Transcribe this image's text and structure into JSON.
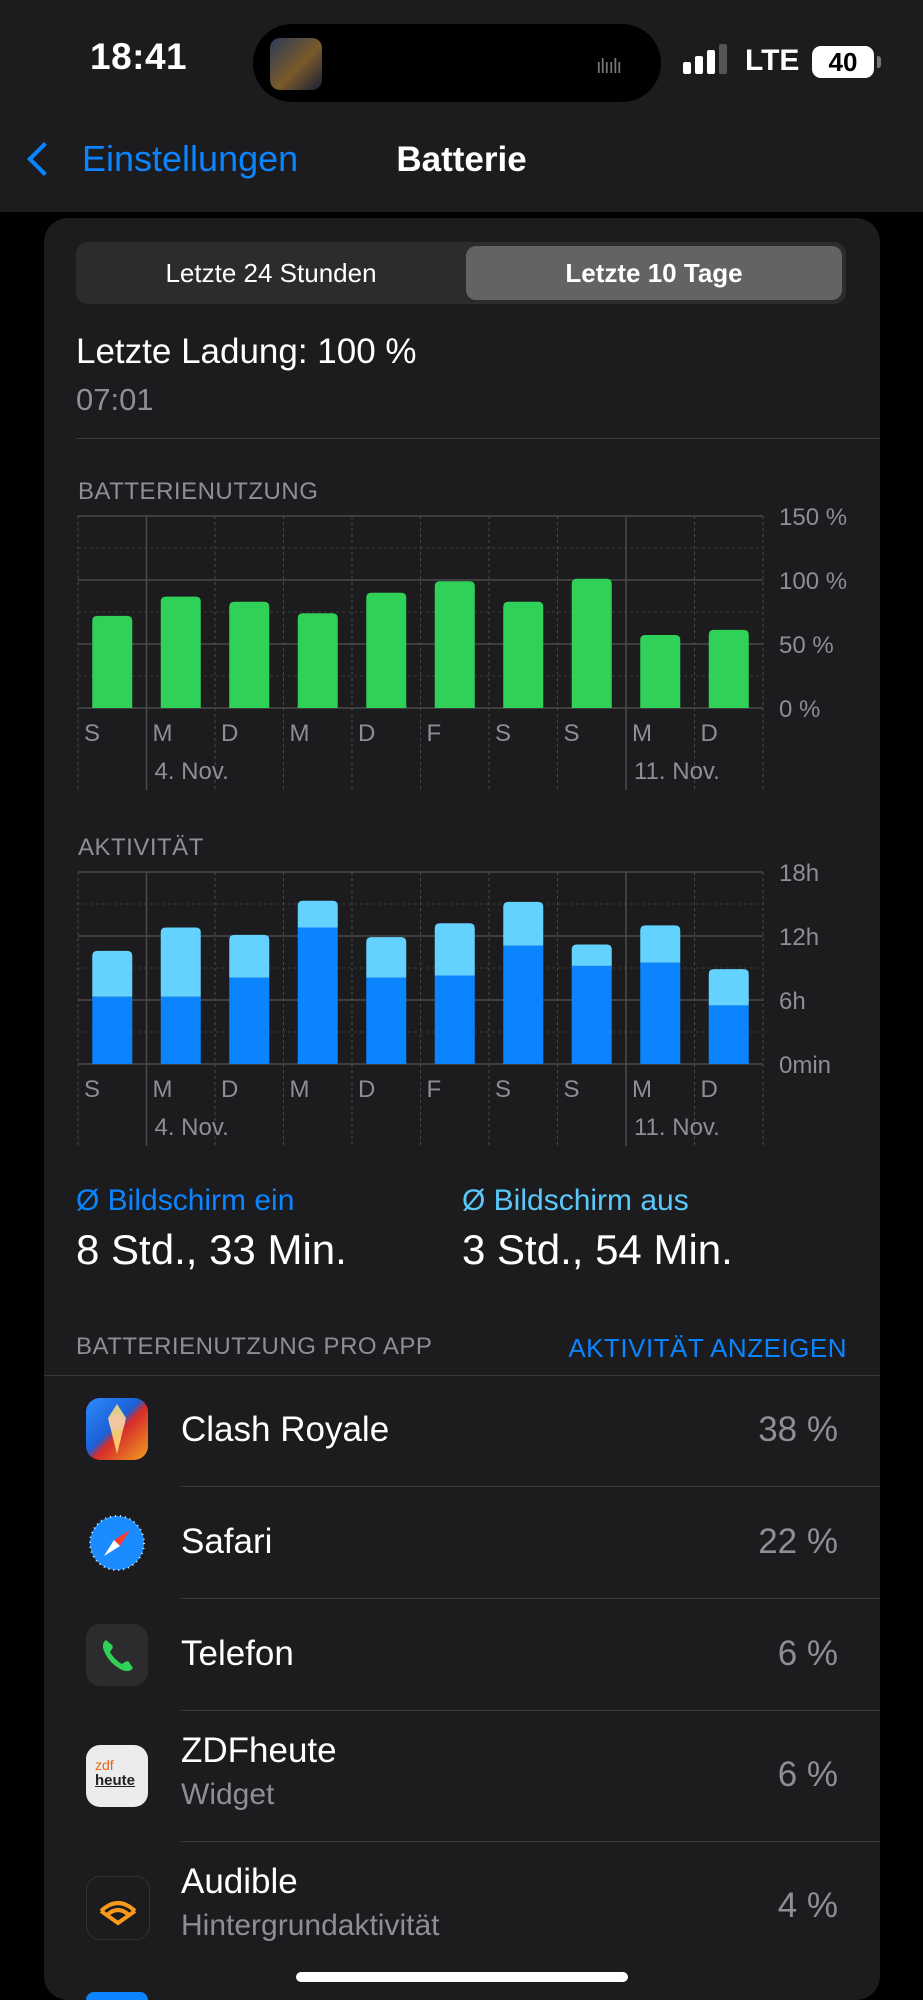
{
  "status_bar": {
    "time": "18:41",
    "network": "LTE",
    "battery_level": "40",
    "signal_bars": 3
  },
  "nav": {
    "back_label": "Einstellungen",
    "title": "Batterie"
  },
  "segments": [
    "Letzte 24 Stunden",
    "Letzte 10 Tage"
  ],
  "selected_segment": 1,
  "last_charge": {
    "label": "Letzte Ladung: 100 %",
    "time": "07:01"
  },
  "usage_section_label": "BATTERIENUTZUNG",
  "activity_section_label": "AKTIVITÄT",
  "chart_data": [
    {
      "type": "bar",
      "title": "BATTERIENUTZUNG",
      "categories": [
        "S",
        "M",
        "D",
        "M",
        "D",
        "F",
        "S",
        "S",
        "M",
        "D"
      ],
      "date_labels": [
        "4. Nov.",
        "11. Nov."
      ],
      "y_ticks": [
        "150 %",
        "100 %",
        "50 %",
        "0 %"
      ],
      "ylim": [
        0,
        150
      ],
      "series": [
        {
          "values": [
            72,
            87,
            83,
            74,
            90,
            99,
            83,
            101,
            57,
            61
          ],
          "color": "#30d158"
        }
      ],
      "grid": true
    },
    {
      "type": "bar",
      "title": "AKTIVITÄT",
      "categories": [
        "S",
        "M",
        "D",
        "M",
        "D",
        "F",
        "S",
        "S",
        "M",
        "D"
      ],
      "date_labels": [
        "4. Nov.",
        "11. Nov."
      ],
      "y_ticks": [
        "18h",
        "12h",
        "6h",
        "0min"
      ],
      "ylim": [
        0,
        18
      ],
      "stacked": true,
      "series": [
        {
          "name": "Bildschirm ein",
          "values": [
            6.3,
            6.3,
            8.1,
            12.8,
            8.1,
            8.3,
            11.1,
            9.2,
            9.5,
            5.5
          ],
          "color": "#0a84ff"
        },
        {
          "name": "Bildschirm aus",
          "values": [
            4.3,
            6.5,
            4.0,
            2.5,
            3.8,
            4.9,
            4.1,
            2.0,
            3.5,
            3.4
          ],
          "color": "#64d2ff"
        }
      ],
      "grid": true
    }
  ],
  "averages": {
    "screen_on_label": "Ø Bildschirm ein",
    "screen_on_value": "8 Std., 33 Min.",
    "screen_off_label": "Ø Bildschirm aus",
    "screen_off_value": "3 Std., 54 Min."
  },
  "app_usage": {
    "header": "BATTERIENUTZUNG PRO APP",
    "show_activity_label": "AKTIVITÄT ANZEIGEN",
    "apps": [
      {
        "name": "Clash Royale",
        "sub": "",
        "percent": "38 %",
        "icon": "clash-royale-icon"
      },
      {
        "name": "Safari",
        "sub": "",
        "percent": "22 %",
        "icon": "safari-icon"
      },
      {
        "name": "Telefon",
        "sub": "",
        "percent": "6 %",
        "icon": "phone-icon"
      },
      {
        "name": "ZDFheute",
        "sub": "Widget",
        "percent": "6 %",
        "icon": "zdfheute-icon"
      },
      {
        "name": "Audible",
        "sub": "Hintergrundaktivität",
        "percent": "4 %",
        "icon": "audible-icon"
      }
    ]
  },
  "icon_text": {
    "zdf_line1": "zdf",
    "zdf_line2": "heute"
  },
  "colors": {
    "accent": "#0a84ff",
    "battery_green": "#30d158",
    "screen_on": "#0a84ff",
    "screen_off": "#64d2ff"
  }
}
